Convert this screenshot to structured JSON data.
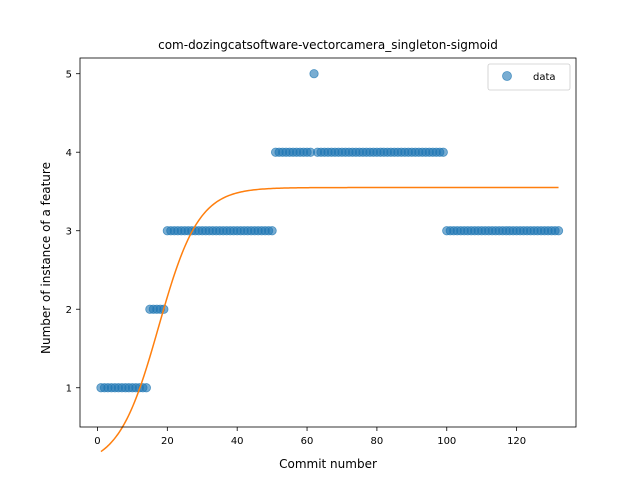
{
  "chart_data": {
    "type": "scatter",
    "title": "com-dozingcatsoftware-vectorcamera_singleton-sigmoid",
    "xlabel": "Commit number",
    "ylabel": "Number of instance of a feature",
    "xlim": [
      -5,
      137
    ],
    "ylim": [
      0.5,
      5.2
    ],
    "xticks": [
      0,
      20,
      40,
      60,
      80,
      100,
      120
    ],
    "yticks": [
      1,
      2,
      3,
      4,
      5
    ],
    "grid": false,
    "legend": {
      "placement": "top-right",
      "entries": [
        "data"
      ]
    },
    "colors": {
      "data": "#1f77b4",
      "fit": "#ff7f0e"
    },
    "series": [
      {
        "name": "data",
        "kind": "scatter",
        "segments": [
          {
            "x_from": 1,
            "x_to": 14,
            "y": 1
          },
          {
            "x_from": 15,
            "x_to": 19,
            "y": 2
          },
          {
            "x_from": 20,
            "x_to": 50,
            "y": 3
          },
          {
            "x_from": 51,
            "x_to": 61,
            "y": 4
          },
          {
            "x_from": 62,
            "x_to": 62,
            "y": 5
          },
          {
            "x_from": 63,
            "x_to": 99,
            "y": 4
          },
          {
            "x_from": 100,
            "x_to": 132,
            "y": 3
          }
        ]
      },
      {
        "kind": "line",
        "model": "sigmoid",
        "params": {
          "L": 3.55,
          "k": 0.175,
          "x0": 17.5,
          "b": 0.0
        },
        "x_range": [
          1,
          132
        ]
      }
    ]
  }
}
